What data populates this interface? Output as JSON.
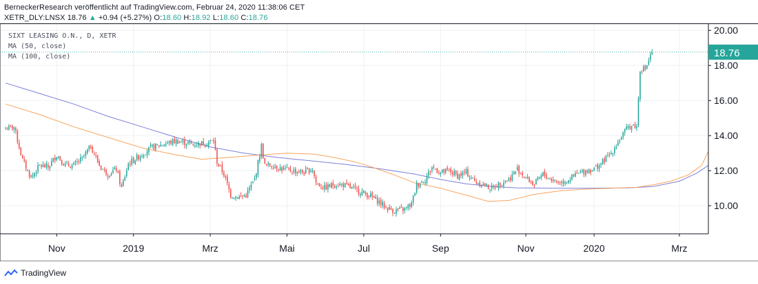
{
  "header": {
    "publisher": "BerneckerResearch veröffentlicht auf TradingView.com, Februar 24, 2020 11:38:06 CET",
    "symbol": "XETR_DLY:LNSX",
    "price": "18.76",
    "change_arrow": "▲",
    "change": "+0.94 (+5.27%)",
    "o_label": "O:",
    "o_val": "18.60",
    "h_label": "H:",
    "h_val": "18.92",
    "l_label": "L:",
    "l_val": "18.60",
    "c_label": "C:",
    "c_val": "18.76"
  },
  "legend": {
    "title": "SIXT LEASING O.N., D, XETR",
    "ma50": "MA (50, close)",
    "ma100": "MA (100, close)"
  },
  "footer": {
    "brand": "TradingView"
  },
  "colors": {
    "up": "#26a69a",
    "down": "#ef5350",
    "ma50": "#f7a35c",
    "ma100": "#7b7fd8",
    "last_price_label": "#26a69a",
    "grid": "#eef0f4"
  },
  "chart_data": {
    "type": "candlestick",
    "title": "SIXT LEASING O.N., D, XETR",
    "ylim": [
      8.4,
      20.4
    ],
    "y_ticks": [
      "10.00",
      "12.00",
      "14.00",
      "16.00",
      "18.00",
      "20.00"
    ],
    "x_ticks": [
      "Nov",
      "2019",
      "Mrz",
      "Mai",
      "Jul",
      "Sep",
      "Nov",
      "2020",
      "Mrz"
    ],
    "last_price": "18.76",
    "last_price_value": 18.76,
    "grid": true,
    "series": [
      {
        "name": "MA (50, close)",
        "values": [
          [
            0,
            15.8
          ],
          [
            20,
            15.2
          ],
          [
            40,
            14.5
          ],
          [
            60,
            13.9
          ],
          [
            80,
            13.3
          ],
          [
            100,
            12.9
          ],
          [
            115,
            12.65
          ],
          [
            130,
            12.75
          ],
          [
            150,
            12.9
          ],
          [
            165,
            13.0
          ],
          [
            180,
            12.95
          ],
          [
            190,
            12.8
          ],
          [
            205,
            12.5
          ],
          [
            215,
            12.2
          ],
          [
            228,
            11.75
          ],
          [
            240,
            11.3
          ],
          [
            255,
            11.0
          ],
          [
            270,
            10.6
          ],
          [
            283,
            10.25
          ],
          [
            295,
            10.3
          ],
          [
            310,
            10.65
          ],
          [
            325,
            10.85
          ],
          [
            340,
            10.95
          ],
          [
            355,
            11.0
          ],
          [
            370,
            11.05
          ],
          [
            380,
            11.2
          ],
          [
            390,
            11.4
          ],
          [
            400,
            11.75
          ],
          [
            408,
            12.3
          ],
          [
            412,
            13.1
          ]
        ]
      },
      {
        "name": "MA (100, close)",
        "values": [
          [
            0,
            17.0
          ],
          [
            20,
            16.4
          ],
          [
            40,
            15.8
          ],
          [
            60,
            15.1
          ],
          [
            80,
            14.5
          ],
          [
            100,
            13.9
          ],
          [
            120,
            13.35
          ],
          [
            140,
            13.0
          ],
          [
            160,
            12.75
          ],
          [
            180,
            12.55
          ],
          [
            200,
            12.35
          ],
          [
            220,
            12.1
          ],
          [
            240,
            11.8
          ],
          [
            255,
            11.5
          ],
          [
            270,
            11.25
          ],
          [
            285,
            11.1
          ],
          [
            300,
            11.02
          ],
          [
            320,
            11.0
          ],
          [
            345,
            11.0
          ],
          [
            365,
            11.02
          ],
          [
            380,
            11.1
          ],
          [
            395,
            11.4
          ],
          [
            405,
            11.85
          ],
          [
            412,
            12.3
          ]
        ]
      }
    ],
    "candles_summary": "daily OHLC from about Oct 2018 to Feb 24 2020; final close 18.76"
  }
}
